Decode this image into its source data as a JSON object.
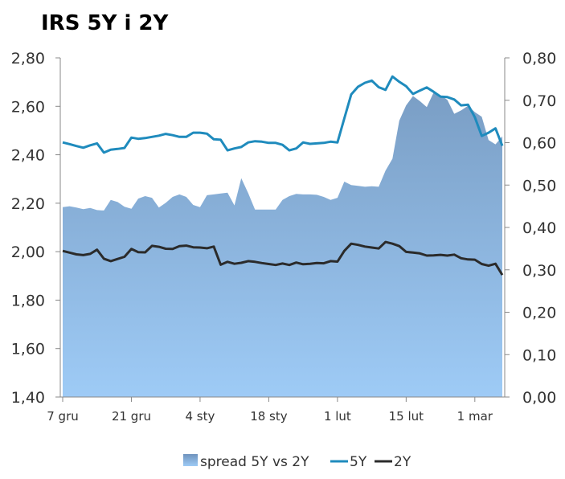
{
  "chart_data": {
    "type": "line",
    "title": "IRS 5Y i 2Y",
    "left_axis": {
      "min": 1.4,
      "max": 2.8,
      "ticks": [
        "1,40",
        "1,60",
        "1,80",
        "2,00",
        "2,20",
        "2,40",
        "2,60",
        "2,80"
      ]
    },
    "right_axis": {
      "min": 0.0,
      "max": 0.8,
      "ticks": [
        "0,00",
        "0,10",
        "0,20",
        "0,30",
        "0,40",
        "0,50",
        "0,60",
        "0,70",
        "0,80"
      ]
    },
    "x_ticks": [
      {
        "label": "7 gru",
        "index": 0
      },
      {
        "label": "21 gru",
        "index": 10
      },
      {
        "label": "4 sty",
        "index": 20
      },
      {
        "label": "18 sty",
        "index": 30
      },
      {
        "label": "1 lut",
        "index": 40
      },
      {
        "label": "15 lut",
        "index": 50
      },
      {
        "label": "1 mar",
        "index": 60
      }
    ],
    "n_points": 65,
    "grid": false,
    "legend_position": "bottom",
    "series": [
      {
        "name": "spread 5Y vs 2Y",
        "type": "area",
        "axis": "right",
        "color": "#7a9ec5",
        "color_bottom": "#9ecbf6",
        "values": [
          0.448,
          0.45,
          0.447,
          0.443,
          0.446,
          0.441,
          0.44,
          0.465,
          0.46,
          0.449,
          0.444,
          0.468,
          0.474,
          0.47,
          0.447,
          0.458,
          0.472,
          0.478,
          0.472,
          0.453,
          0.448,
          0.476,
          0.478,
          0.48,
          0.482,
          0.452,
          0.516,
          0.481,
          0.442,
          0.442,
          0.442,
          0.442,
          0.465,
          0.474,
          0.479,
          0.478,
          0.478,
          0.477,
          0.472,
          0.465,
          0.47,
          0.508,
          0.5,
          0.498,
          0.496,
          0.497,
          0.496,
          0.534,
          0.562,
          0.652,
          0.688,
          0.71,
          0.698,
          0.684,
          0.718,
          0.712,
          0.701,
          0.668,
          0.676,
          0.687,
          0.672,
          0.661,
          0.606,
          0.596,
          0.615
        ]
      },
      {
        "name": "5Y",
        "type": "line",
        "axis": "left",
        "color": "#1f8bbd",
        "values": [
          2.451,
          2.444,
          2.436,
          2.429,
          2.439,
          2.447,
          2.409,
          2.421,
          2.424,
          2.428,
          2.471,
          2.466,
          2.469,
          2.474,
          2.479,
          2.486,
          2.481,
          2.474,
          2.474,
          2.491,
          2.491,
          2.487,
          2.464,
          2.462,
          2.418,
          2.426,
          2.432,
          2.451,
          2.456,
          2.454,
          2.449,
          2.449,
          2.441,
          2.418,
          2.426,
          2.451,
          2.445,
          2.447,
          2.449,
          2.454,
          2.451,
          2.55,
          2.649,
          2.681,
          2.697,
          2.706,
          2.679,
          2.668,
          2.723,
          2.701,
          2.683,
          2.651,
          2.665,
          2.678,
          2.66,
          2.64,
          2.638,
          2.628,
          2.604,
          2.607,
          2.555,
          2.478,
          2.491,
          2.509,
          2.437
        ]
      },
      {
        "name": "2Y",
        "type": "line",
        "axis": "left",
        "color": "#2b2b2b",
        "values": [
          2.003,
          1.996,
          1.989,
          1.986,
          1.991,
          2.008,
          1.971,
          1.961,
          1.97,
          1.979,
          2.011,
          1.998,
          1.997,
          2.024,
          2.02,
          2.012,
          2.011,
          2.023,
          2.025,
          2.018,
          2.017,
          2.014,
          2.021,
          1.946,
          1.958,
          1.95,
          1.954,
          1.961,
          1.958,
          1.953,
          1.949,
          1.945,
          1.951,
          1.945,
          1.955,
          1.948,
          1.95,
          1.953,
          1.952,
          1.961,
          1.959,
          2.003,
          2.033,
          2.028,
          2.021,
          2.017,
          2.013,
          2.04,
          2.033,
          2.023,
          1.999,
          1.996,
          1.993,
          1.984,
          1.985,
          1.987,
          1.984,
          1.988,
          1.973,
          1.968,
          1.967,
          1.949,
          1.942,
          1.95,
          1.904
        ]
      }
    ]
  }
}
